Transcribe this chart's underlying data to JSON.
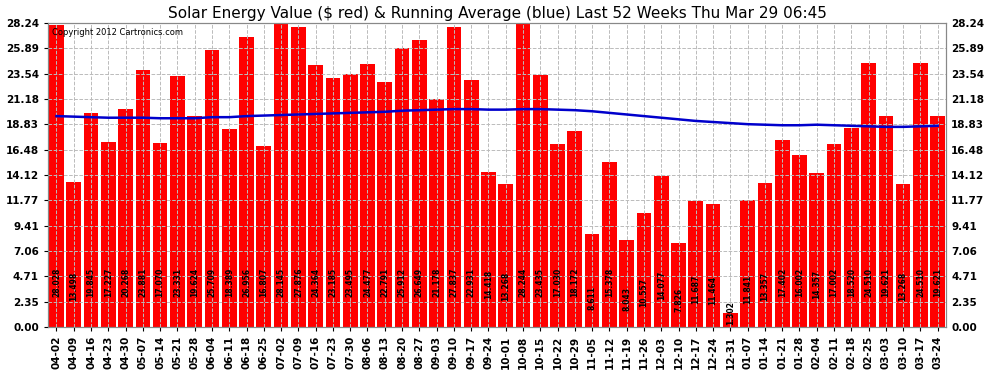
{
  "title": "Solar Energy Value ($ red) & Running Average (blue) Last 52 Weeks Thu Mar 29 06:45",
  "copyright": "Copyright 2012 Cartronics.com",
  "bar_color": "#ff0000",
  "line_color": "#0000cc",
  "background_color": "#ffffff",
  "plot_background": "#ffffff",
  "grid_color": "#bbbbbb",
  "yticks": [
    0.0,
    2.35,
    4.71,
    7.06,
    9.41,
    11.77,
    14.12,
    16.48,
    18.83,
    21.18,
    23.54,
    25.89,
    28.24
  ],
  "categories": [
    "04-02",
    "04-09",
    "04-16",
    "04-23",
    "04-30",
    "05-07",
    "05-14",
    "05-21",
    "05-28",
    "06-04",
    "06-11",
    "06-18",
    "06-25",
    "07-02",
    "07-09",
    "07-16",
    "07-23",
    "07-30",
    "08-06",
    "08-13",
    "08-20",
    "08-27",
    "09-03",
    "09-10",
    "09-17",
    "09-24",
    "10-01",
    "10-08",
    "10-15",
    "10-22",
    "10-29",
    "11-05",
    "11-12",
    "11-19",
    "11-26",
    "12-03",
    "12-10",
    "12-17",
    "12-24",
    "12-31",
    "01-07",
    "01-14",
    "01-21",
    "01-28",
    "02-04",
    "02-11",
    "02-18",
    "02-25",
    "03-03",
    "03-10",
    "03-17",
    "03-24"
  ],
  "values": [
    28.028,
    13.498,
    19.845,
    17.227,
    20.268,
    23.881,
    17.07,
    23.331,
    19.624,
    25.709,
    18.389,
    26.956,
    16.807,
    28.145,
    27.876,
    24.364,
    23.185,
    23.495,
    24.477,
    22.791,
    25.912,
    26.649,
    21.178,
    27.837,
    22.931,
    14.418,
    13.268,
    28.244,
    23.435,
    17.03,
    18.172,
    8.611,
    15.378,
    8.043,
    10.557,
    14.077,
    7.826,
    11.687,
    11.464,
    1.302,
    11.841,
    13.357,
    17.402,
    16.002,
    14.357,
    17.002,
    18.52,
    24.51,
    19.621,
    13.268,
    24.51,
    19.621
  ],
  "running_avg": [
    19.6,
    19.55,
    19.5,
    19.45,
    19.45,
    19.45,
    19.4,
    19.4,
    19.4,
    19.5,
    19.5,
    19.6,
    19.65,
    19.7,
    19.75,
    19.8,
    19.85,
    19.9,
    19.95,
    20.0,
    20.1,
    20.15,
    20.2,
    20.25,
    20.25,
    20.2,
    20.2,
    20.25,
    20.25,
    20.2,
    20.15,
    20.05,
    19.9,
    19.75,
    19.6,
    19.45,
    19.3,
    19.15,
    19.05,
    18.95,
    18.85,
    18.8,
    18.75,
    18.75,
    18.8,
    18.75,
    18.7,
    18.65,
    18.6,
    18.6,
    18.65,
    18.7
  ],
  "ylim": [
    0,
    28.24
  ],
  "title_fontsize": 11,
  "tick_fontsize": 7.5,
  "value_fontsize": 5.5,
  "bar_width": 0.85
}
